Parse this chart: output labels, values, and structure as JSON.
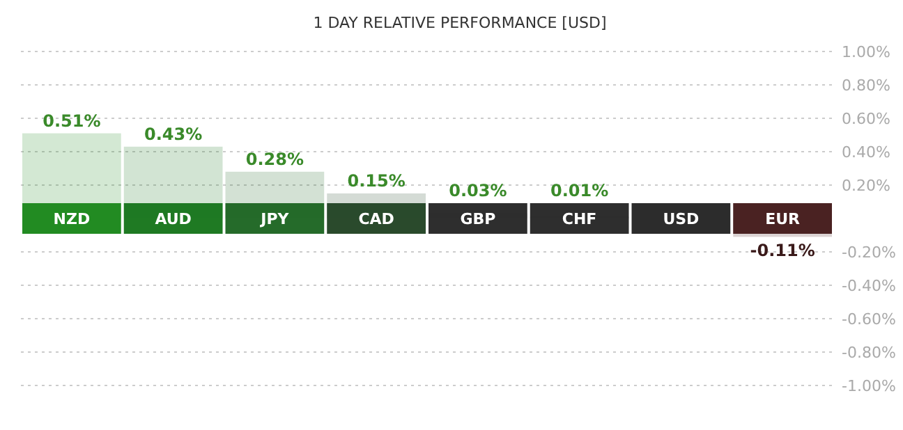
{
  "chart_data": {
    "type": "bar",
    "title": "1 DAY RELATIVE PERFORMANCE  [USD]",
    "categories": [
      "NZD",
      "AUD",
      "JPY",
      "CAD",
      "GBP",
      "CHF",
      "USD",
      "EUR"
    ],
    "values": [
      0.51,
      0.43,
      0.28,
      0.15,
      0.03,
      0.01,
      0,
      -0.11
    ],
    "colors": [
      "#228b22",
      "#1f7a23",
      "#256b2a",
      "#2a4a2c",
      "#2e2e2e",
      "#2e2e2e",
      "#2c2c2c",
      "#4a2222"
    ],
    "value_labels": [
      "0.51%",
      "0.43%",
      "0.28%",
      "0.15%",
      "0.03%",
      "0.01%",
      null,
      "-0.11%"
    ],
    "ylim": [
      -1,
      1
    ],
    "yticks": [
      {
        "value": 1,
        "label": "1.00%"
      },
      {
        "value": 0.8,
        "label": "0.80%"
      },
      {
        "value": 0.6,
        "label": "0.60%"
      },
      {
        "value": 0.4,
        "label": "0.40%"
      },
      {
        "value": 0.2,
        "label": "0.20%"
      },
      {
        "value": -0.2,
        "label": "-0.20%"
      },
      {
        "value": -0.4,
        "label": "-0.40%"
      },
      {
        "value": -0.6,
        "label": "-0.60%"
      },
      {
        "value": -0.8,
        "label": "-0.80%"
      },
      {
        "value": -1,
        "label": "-1.00%"
      }
    ],
    "grid": "y"
  }
}
